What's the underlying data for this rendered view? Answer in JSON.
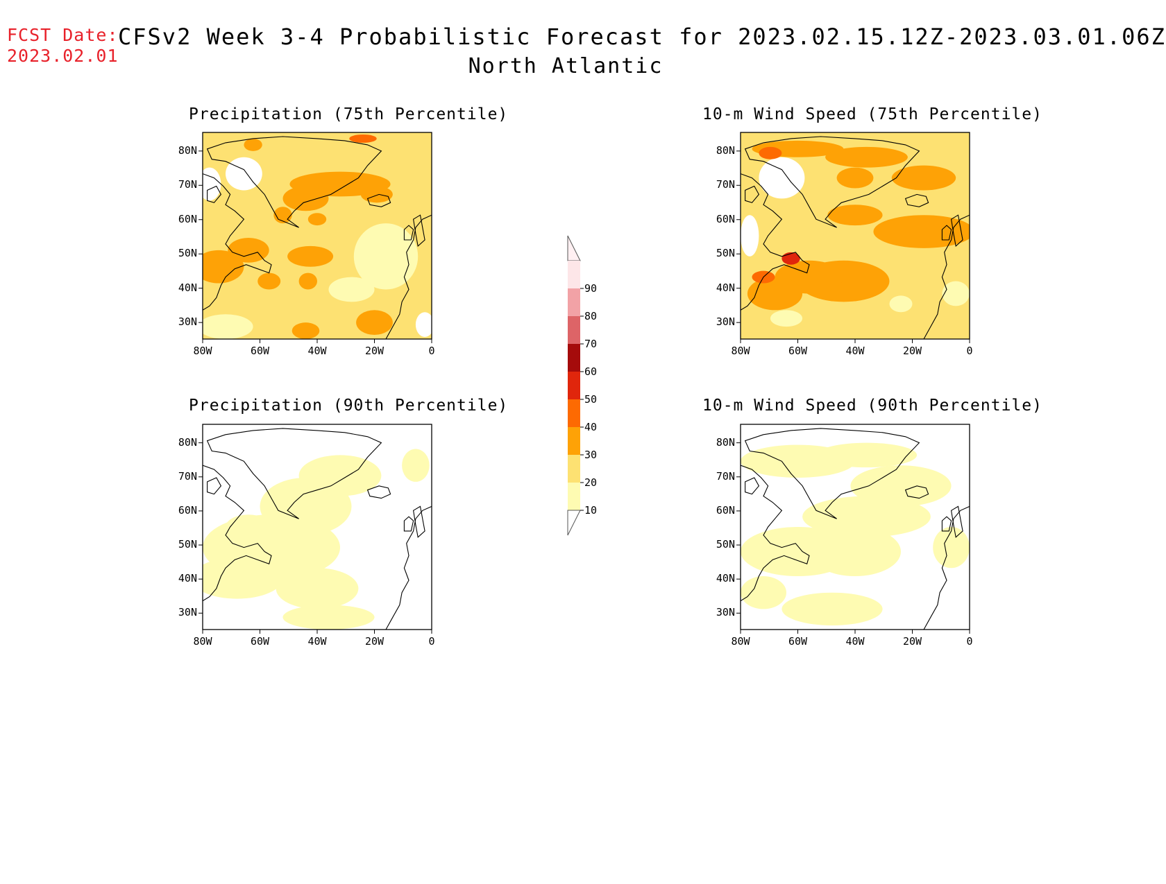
{
  "header": {
    "fcst_label": "FCST Date:",
    "fcst_date": "2023.02.01",
    "title": "CFSv2 Week 3-4 Probabilistic Forecast for 2023.02.15.12Z-2023.03.01.06Z",
    "region": "North Atlantic"
  },
  "panels": [
    {
      "id": "precip-75",
      "title": "Precipitation (75th Percentile)"
    },
    {
      "id": "wind-75",
      "title": "10-m Wind Speed (75th Percentile)"
    },
    {
      "id": "precip-90",
      "title": "Precipitation (90th Percentile)"
    },
    {
      "id": "wind-90",
      "title": "10-m Wind Speed (90th Percentile)"
    }
  ],
  "axes": {
    "lat_labels": [
      "80N",
      "70N",
      "60N",
      "50N",
      "40N",
      "30N"
    ],
    "lon_labels": [
      "80W",
      "60W",
      "40W",
      "20W",
      "0"
    ]
  },
  "colorbar": {
    "labels": [
      "90",
      "80",
      "70",
      "60",
      "50",
      "40",
      "30",
      "20",
      "10"
    ],
    "colors": [
      "#fde6e8",
      "#f2a2a6",
      "#dd6467",
      "#a50b0b",
      "#e0260c",
      "#fd6a02",
      "#fea206",
      "#fde172",
      "#fefbb2"
    ]
  }
}
